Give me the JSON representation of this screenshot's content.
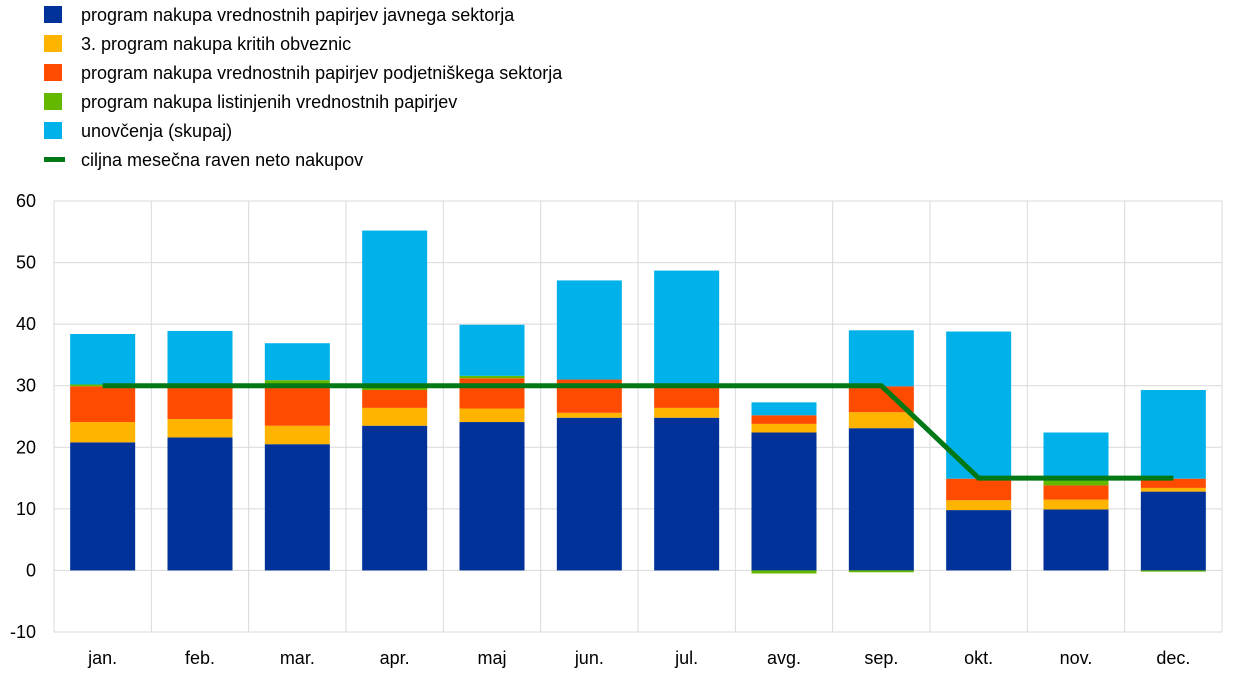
{
  "chart_data": {
    "type": "bar",
    "stacked": true,
    "categories": [
      "jan.",
      "feb.",
      "mar.",
      "apr.",
      "maj",
      "jun.",
      "jul.",
      "avg.",
      "sep.",
      "okt.",
      "nov.",
      "dec."
    ],
    "ylim": [
      -10,
      60
    ],
    "yticks": [
      "-10",
      "0",
      "10",
      "20",
      "30",
      "40",
      "50",
      "60"
    ],
    "grid": true,
    "legend_position": "top-left",
    "series": [
      {
        "name": "program nakupa vrednostnih papirjev javnega sektorja",
        "color": "#003299",
        "values": [
          20.8,
          21.6,
          20.5,
          23.5,
          24.1,
          24.8,
          24.8,
          22.4,
          23.1,
          9.8,
          9.9,
          12.8
        ]
      },
      {
        "name": "3. program nakupa kritih obveznic",
        "color": "#FFB400",
        "values": [
          3.3,
          3.0,
          3.0,
          2.9,
          2.2,
          0.8,
          1.6,
          1.4,
          2.6,
          1.6,
          1.6,
          0.6
        ]
      },
      {
        "name": "program nakupa vrednostnih papirjev podjetniškega sektorja",
        "color": "#FF4B00",
        "values": [
          5.8,
          5.2,
          6.6,
          2.9,
          4.9,
          5.4,
          3.5,
          1.4,
          4.2,
          3.5,
          2.3,
          1.5
        ]
      },
      {
        "name": "program nakupa listinjenih vrednostnih papirjev",
        "color": "#65B800",
        "values": [
          0.3,
          0.0,
          0.8,
          1.0,
          0.4,
          0.0,
          0.4,
          -0.5,
          -0.3,
          0.0,
          0.8,
          -0.2
        ]
      },
      {
        "name": "unovčenja (skupaj)",
        "color": "#00B1EA",
        "values": [
          8.2,
          9.1,
          6.0,
          24.9,
          8.3,
          16.1,
          18.4,
          2.1,
          9.1,
          23.9,
          7.8,
          14.4
        ]
      }
    ],
    "line": {
      "name": "ciljna mesečna raven neto nakupov",
      "color": "#007816",
      "values": [
        30,
        30,
        30,
        30,
        30,
        30,
        30,
        30,
        30,
        15,
        15,
        15
      ]
    }
  }
}
